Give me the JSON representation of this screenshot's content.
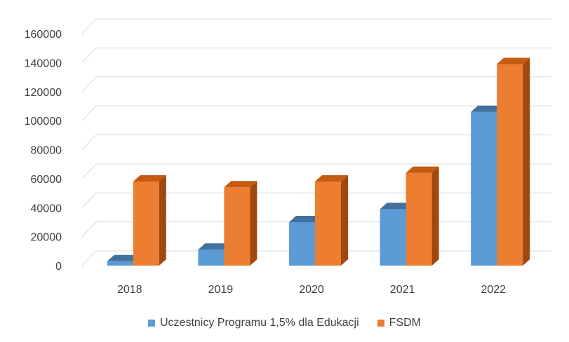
{
  "chart_data": {
    "type": "bar",
    "categories": [
      "2018",
      "2019",
      "2020",
      "2021",
      "2022"
    ],
    "series": [
      {
        "name": "Uczestnicy Programu 1,5% dla Edukacji",
        "values": [
          3000,
          11000,
          30000,
          39000,
          106000
        ],
        "color": "#5B9BD5"
      },
      {
        "name": "FSDM",
        "values": [
          58000,
          54000,
          58000,
          64000,
          139000
        ],
        "color": "#ED7D31"
      }
    ],
    "y_ticks": [
      "0",
      "20000",
      "40000",
      "60000",
      "80000",
      "100000",
      "120000",
      "140000",
      "160000"
    ],
    "ylim": [
      0,
      160000
    ],
    "grid": true,
    "legend_position": "bottom",
    "style": "3d-clustered-column"
  }
}
